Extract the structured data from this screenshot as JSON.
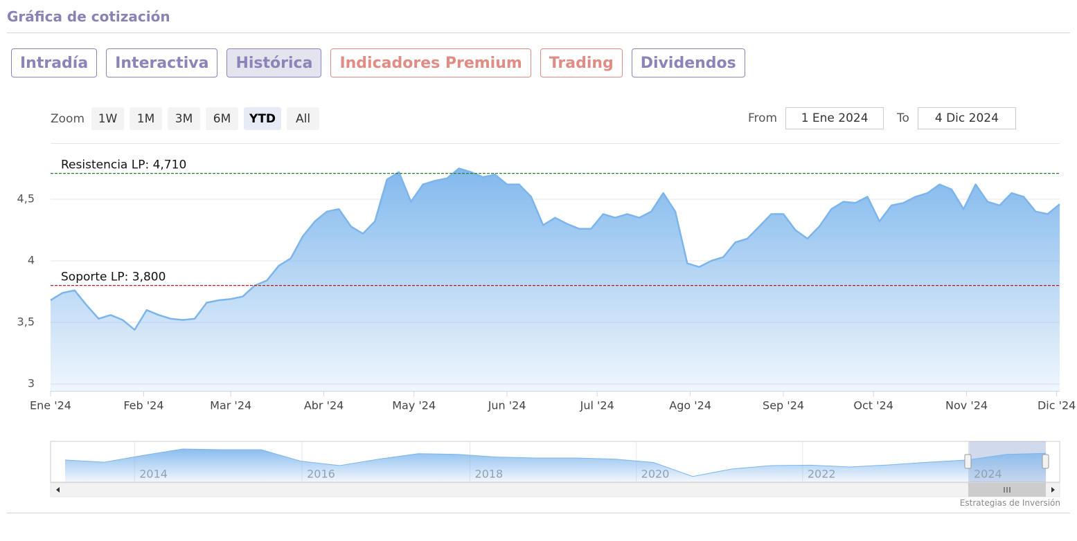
{
  "header": {
    "title": "Gráfica de cotización"
  },
  "tabs": [
    {
      "label": "Intradía",
      "color": "#8c84b8"
    },
    {
      "label": "Interactiva",
      "color": "#8c84b8"
    },
    {
      "label": "Histórica",
      "color": "#8c84b8",
      "active": true
    },
    {
      "label": "Indicadores Premium",
      "color": "#e08c84"
    },
    {
      "label": "Trading",
      "color": "#e08c84"
    },
    {
      "label": "Dividendos",
      "color": "#8c84b8"
    }
  ],
  "zoom": {
    "label": "Zoom",
    "buttons": [
      "1W",
      "1M",
      "3M",
      "6M",
      "YTD",
      "All"
    ],
    "selected": 4
  },
  "range": {
    "from_label": "From",
    "from": "1 Ene 2024",
    "to_label": "To",
    "to": "4 Dic 2024"
  },
  "chart_data": {
    "type": "area",
    "color": "#7cb5ec",
    "values": [
      3.68,
      3.74,
      3.76,
      3.64,
      3.53,
      3.56,
      3.52,
      3.44,
      3.6,
      3.56,
      3.53,
      3.52,
      3.53,
      3.66,
      3.68,
      3.69,
      3.71,
      3.8,
      3.84,
      3.96,
      4.02,
      4.2,
      4.32,
      4.4,
      4.42,
      4.28,
      4.22,
      4.32,
      4.66,
      4.72,
      4.48,
      4.62,
      4.65,
      4.67,
      4.75,
      4.72,
      4.68,
      4.7,
      4.62,
      4.62,
      4.52,
      4.29,
      4.35,
      4.3,
      4.26,
      4.26,
      4.38,
      4.35,
      4.38,
      4.35,
      4.4,
      4.55,
      4.4,
      3.98,
      3.95,
      4.0,
      4.03,
      4.15,
      4.18,
      4.28,
      4.38,
      4.38,
      4.25,
      4.18,
      4.28,
      4.42,
      4.48,
      4.47,
      4.52,
      4.32,
      4.45,
      4.47,
      4.52,
      4.55,
      4.62,
      4.58,
      4.42,
      4.62,
      4.48,
      4.45,
      4.55,
      4.52,
      4.4,
      4.38,
      4.46
    ],
    "xlim": [
      0,
      84
    ],
    "xticks": [
      {
        "value": 0,
        "label": "Ene '24"
      },
      {
        "value": 7.75,
        "label": "Feb '24"
      },
      {
        "value": 15,
        "label": "Mar '24"
      },
      {
        "value": 22.75,
        "label": "Abr '24"
      },
      {
        "value": 30.25,
        "label": "May '24"
      },
      {
        "value": 38,
        "label": "Jun '24"
      },
      {
        "value": 45.5,
        "label": "Jul '24"
      },
      {
        "value": 53.25,
        "label": "Ago '24"
      },
      {
        "value": 61,
        "label": "Sep '24"
      },
      {
        "value": 68.5,
        "label": "Oct '24"
      },
      {
        "value": 76.25,
        "label": "Nov '24"
      },
      {
        "value": 83.75,
        "label": "Dic '24"
      }
    ],
    "ylim": [
      2.944,
      4.955
    ],
    "yticks": [
      3,
      {
        "value": 3.5,
        "label": "3,5"
      },
      4,
      {
        "value": 4.5,
        "label": "4,5"
      }
    ],
    "grid": true,
    "plot_lines": [
      {
        "label": "Resistencia LP: 4,710",
        "value": 4.71,
        "color": "#2e7d32"
      },
      {
        "label": "Soporte LP: 3,800",
        "value": 3.8,
        "color": "#b71c1c"
      }
    ]
  },
  "navigator": {
    "values": [
      3.63,
      3.47,
      3.98,
      4.44,
      4.39,
      4.39,
      3.55,
      3.22,
      3.7,
      4.1,
      4.05,
      3.85,
      3.78,
      3.78,
      3.7,
      3.45,
      2.42,
      2.97,
      3.22,
      3.25,
      3.12,
      3.27,
      3.47,
      3.63,
      4.05,
      4.12
    ],
    "xlim": [
      0,
      25
    ],
    "ylim": [
      2,
      5
    ],
    "xticks": [
      {
        "value": 1.77,
        "label": "2014"
      },
      {
        "value": 6.04,
        "label": "2016"
      },
      {
        "value": 10.32,
        "label": "2018"
      },
      {
        "value": 14.56,
        "label": "2020"
      },
      {
        "value": 18.8,
        "label": "2022"
      },
      {
        "value": 23.04,
        "label": "2024"
      }
    ]
  },
  "credit": "Estrategias de Inversión"
}
